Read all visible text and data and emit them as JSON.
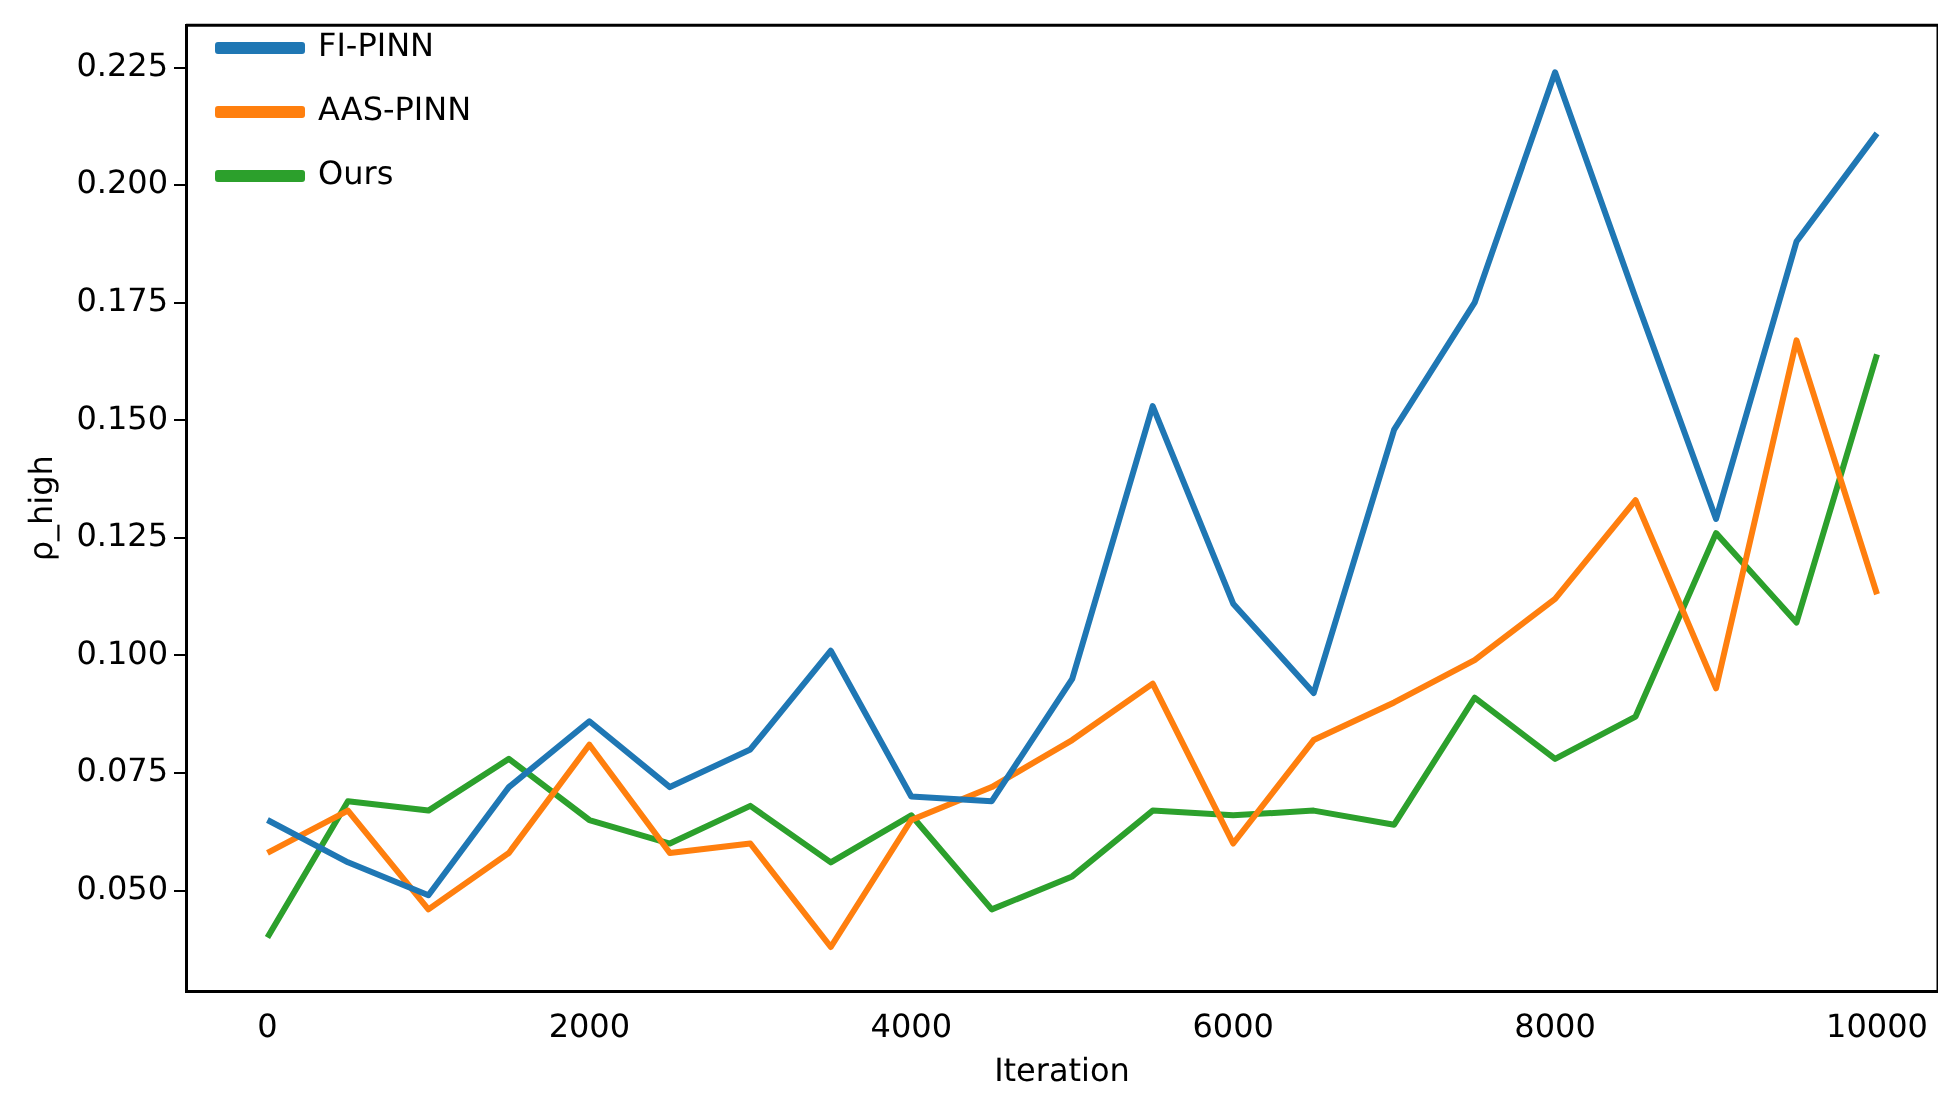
{
  "chart_data": {
    "type": "line",
    "xlabel": "Iteration",
    "ylabel": "ρ_high",
    "x": [
      0,
      500,
      1000,
      1500,
      2000,
      2500,
      3000,
      3500,
      4000,
      4500,
      5000,
      5500,
      6000,
      6500,
      7000,
      7500,
      8000,
      8500,
      9000,
      9500,
      10000
    ],
    "series": [
      {
        "name": "FI-PINN",
        "color": "#1f77b4",
        "values": [
          0.065,
          0.056,
          0.049,
          0.072,
          0.086,
          0.072,
          0.08,
          0.101,
          0.07,
          0.069,
          0.095,
          0.153,
          0.111,
          0.092,
          0.148,
          0.175,
          0.224,
          0.176,
          0.129,
          0.188,
          0.211
        ]
      },
      {
        "name": "AAS-PINN",
        "color": "#ff7f0e",
        "values": [
          0.058,
          0.067,
          0.046,
          0.058,
          0.081,
          0.058,
          0.06,
          0.038,
          0.065,
          0.072,
          0.082,
          0.094,
          0.06,
          0.082,
          0.09,
          0.099,
          0.112,
          0.133,
          0.093,
          0.167,
          0.113
        ]
      },
      {
        "name": "Ours",
        "color": "#2ca02c",
        "values": [
          0.04,
          0.069,
          0.067,
          0.078,
          0.065,
          0.06,
          0.068,
          0.056,
          0.066,
          0.046,
          0.053,
          0.067,
          0.066,
          0.067,
          0.064,
          0.091,
          0.078,
          0.087,
          0.126,
          0.107,
          0.164
        ]
      }
    ],
    "xlim": [
      -506,
      10379
    ],
    "xticks": [
      0,
      2000,
      4000,
      6000,
      8000,
      10000
    ],
    "ylim": [
      0.0286,
      0.234
    ],
    "yticks": [
      {
        "value": 0.05,
        "label": "0.050"
      },
      {
        "value": 0.075,
        "label": "0.075"
      },
      {
        "value": 0.1,
        "label": "0.100"
      },
      {
        "value": 0.125,
        "label": "0.125"
      },
      {
        "value": 0.15,
        "label": "0.150"
      },
      {
        "value": 0.175,
        "label": "0.175"
      },
      {
        "value": 0.2,
        "label": "0.200"
      },
      {
        "value": 0.225,
        "label": "0.225"
      }
    ],
    "grid": false,
    "legend": "top left",
    "marker": "none",
    "line_style": "solid"
  }
}
